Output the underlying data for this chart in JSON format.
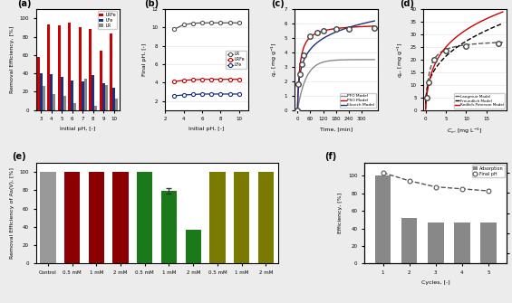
{
  "a_pH": [
    3,
    4,
    5,
    6,
    7,
    8,
    9,
    10
  ],
  "a_LRFe": [
    58,
    93,
    92,
    95,
    90,
    88,
    65,
    83
  ],
  "a_LFe": [
    40,
    39,
    36,
    32,
    31,
    38,
    29,
    24
  ],
  "a_LR": [
    26,
    17,
    15,
    8,
    34,
    5,
    27,
    13
  ],
  "b_pH": [
    3,
    4,
    5,
    6,
    7,
    8,
    9,
    10
  ],
  "b_LR": [
    9.8,
    10.3,
    10.45,
    10.5,
    10.5,
    10.5,
    10.5,
    10.5
  ],
  "b_LRFe": [
    4.1,
    4.25,
    4.3,
    4.35,
    4.35,
    4.35,
    4.35,
    4.35
  ],
  "b_LFe": [
    2.55,
    2.65,
    2.7,
    2.75,
    2.75,
    2.75,
    2.75,
    2.75
  ],
  "c_time_data": [
    0,
    5,
    10,
    20,
    30,
    60,
    90,
    120,
    180,
    240,
    360
  ],
  "c_qt_data": [
    0,
    1.8,
    2.5,
    3.2,
    3.8,
    5.1,
    5.4,
    5.5,
    5.6,
    5.65,
    5.7
  ],
  "c_qe_pfo": 3.5,
  "c_k1": 0.025,
  "c_qe_pso": 6.0,
  "c_k2": 0.015,
  "c_a_el": 0.8,
  "c_b_el": 0.9,
  "d_Ce_data": [
    0.3,
    0.8,
    2.0,
    5.0,
    10.0,
    18.0
  ],
  "d_qe_data": [
    5.0,
    11.0,
    20.0,
    23.5,
    25.5,
    26.5
  ],
  "d_qmax_L": 28.0,
  "d_KL": 1.2,
  "d_KF": 12.0,
  "d_nF": 2.8,
  "d_KRP": 30.0,
  "d_aRP": 1.5,
  "d_beta": 0.75,
  "e_categories": [
    "Control",
    "0.5 mM",
    "1 mM",
    "2 mM",
    "0.5 mM",
    "1 mM",
    "2 mM",
    "0.5 mM",
    "1 mM",
    "2 mM"
  ],
  "e_values": [
    100,
    100,
    100,
    100,
    100,
    79,
    37,
    100,
    100,
    100
  ],
  "e_yerr": [
    0,
    0,
    0,
    0,
    0,
    3,
    0,
    0,
    0,
    0
  ],
  "e_colors": [
    "#999999",
    "#8B0000",
    "#8B0000",
    "#8B0000",
    "#1a7a1a",
    "#1a7a1a",
    "#1a7a1a",
    "#7a7a00",
    "#7a7a00",
    "#7a7a00"
  ],
  "f_cycles": [
    1,
    2,
    3,
    4,
    5
  ],
  "f_adsorption": [
    100,
    52,
    47,
    47,
    47
  ],
  "f_pH": [
    7.0,
    6.6,
    6.3,
    6.2,
    6.1
  ],
  "bg_color": "#ececec",
  "panel_bg": "#ffffff",
  "grid_color": "#ffffff",
  "grid_color2": "#e8e8e8"
}
